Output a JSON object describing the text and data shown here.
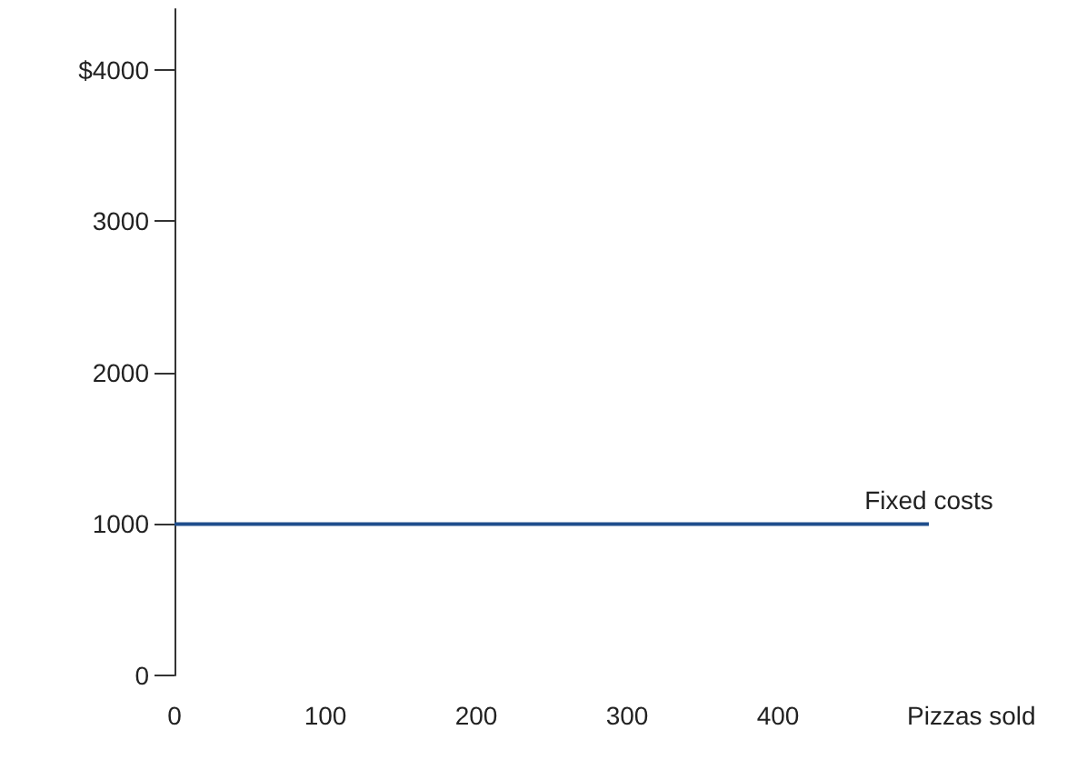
{
  "chart_data": {
    "type": "line",
    "xlabel": "Pizzas sold",
    "x": [
      0,
      500
    ],
    "series": [
      {
        "color": "#1f4e8c",
        "values": [
          1000,
          1000
        ]
      }
    ],
    "xlim": [
      0,
      500
    ],
    "ylim": [
      0,
      4400
    ],
    "xticks": [
      0,
      100,
      200,
      300,
      400
    ],
    "yticks": [
      0,
      1000,
      2000,
      3000,
      {
        "value": 4000,
        "label": "$4000"
      }
    ],
    "annotations": [
      {
        "text": "Fixed costs",
        "x": 500,
        "y": 1000
      }
    ],
    "grid": false,
    "marker": "none",
    "line_style": "solid"
  }
}
